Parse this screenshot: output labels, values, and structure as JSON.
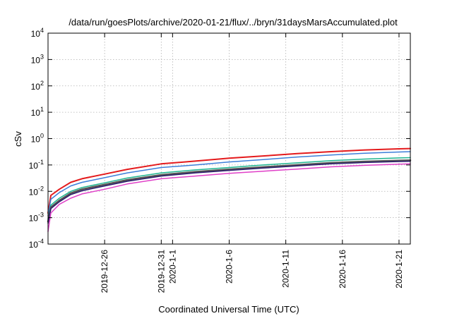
{
  "chart_data": {
    "type": "line",
    "title": "/data/run/goesPlots/archive/2020-01-21/flux/../bryn/31daysMarsAccumulated.plot",
    "xlabel": "Coordinated Universal Time (UTC)",
    "ylabel": "cSv",
    "yscale": "log",
    "ylim": [
      0.0001,
      10000
    ],
    "xlim": [
      "2019-12-21",
      "2020-01-22"
    ],
    "grid": true,
    "y_ticks": [
      {
        "value": 0.0001,
        "base": "10",
        "exp": "-4"
      },
      {
        "value": 0.001,
        "base": "10",
        "exp": "-3"
      },
      {
        "value": 0.01,
        "base": "10",
        "exp": "-2"
      },
      {
        "value": 0.1,
        "base": "10",
        "exp": "-1"
      },
      {
        "value": 1,
        "base": "10",
        "exp": "0"
      },
      {
        "value": 10,
        "base": "10",
        "exp": "1"
      },
      {
        "value": 100,
        "base": "10",
        "exp": "2"
      },
      {
        "value": 1000,
        "base": "10",
        "exp": "3"
      },
      {
        "value": 10000,
        "base": "10",
        "exp": "4"
      }
    ],
    "x_ticks": [
      {
        "date": "2019-12-26",
        "label": "2019-12-26"
      },
      {
        "date": "2019-12-31",
        "label": "2019-12-31"
      },
      {
        "date": "2020-01-01",
        "label": "2020-1-1"
      },
      {
        "date": "2020-01-06",
        "label": "2020-1-6"
      },
      {
        "date": "2020-01-11",
        "label": "2020-1-11"
      },
      {
        "date": "2020-01-16",
        "label": "2020-1-16"
      },
      {
        "date": "2020-01-21",
        "label": "2020-1-21"
      }
    ],
    "x": [
      "2019-12-21",
      "2019-12-21T06:00",
      "2019-12-22",
      "2019-12-23",
      "2019-12-24",
      "2019-12-26",
      "2019-12-28",
      "2019-12-31",
      "2020-01-03",
      "2020-01-06",
      "2020-01-09",
      "2020-01-12",
      "2020-01-15",
      "2020-01-18",
      "2020-01-21",
      "2020-01-22"
    ],
    "series": [
      {
        "color": "#e41a1c",
        "width": 2,
        "values": [
          0.0015,
          0.007,
          0.012,
          0.022,
          0.03,
          0.045,
          0.068,
          0.11,
          0.14,
          0.18,
          0.22,
          0.27,
          0.32,
          0.37,
          0.41,
          0.42
        ]
      },
      {
        "color": "#3d7fd9",
        "width": 1.5,
        "values": [
          0.0012,
          0.005,
          0.009,
          0.016,
          0.022,
          0.033,
          0.05,
          0.08,
          0.1,
          0.13,
          0.16,
          0.2,
          0.24,
          0.28,
          0.31,
          0.32
        ]
      },
      {
        "color": "#1fb58f",
        "width": 1.5,
        "values": [
          0.0009,
          0.003,
          0.0055,
          0.01,
          0.014,
          0.021,
          0.032,
          0.05,
          0.065,
          0.08,
          0.1,
          0.12,
          0.145,
          0.168,
          0.185,
          0.19
        ]
      },
      {
        "color": "#555555",
        "width": 2.5,
        "values": [
          0.0007,
          0.0025,
          0.0045,
          0.0085,
          0.012,
          0.018,
          0.027,
          0.042,
          0.055,
          0.068,
          0.083,
          0.1,
          0.12,
          0.135,
          0.147,
          0.15
        ]
      },
      {
        "color": "#2a1a6e",
        "width": 1.5,
        "values": [
          0.0006,
          0.0022,
          0.004,
          0.0075,
          0.0105,
          0.016,
          0.024,
          0.038,
          0.05,
          0.062,
          0.076,
          0.092,
          0.11,
          0.124,
          0.135,
          0.138
        ]
      },
      {
        "color": "#e040c8",
        "width": 1.5,
        "values": [
          0.0003,
          0.0015,
          0.0032,
          0.0055,
          0.008,
          0.012,
          0.019,
          0.03,
          0.038,
          0.048,
          0.058,
          0.07,
          0.085,
          0.097,
          0.107,
          0.11
        ]
      }
    ]
  }
}
